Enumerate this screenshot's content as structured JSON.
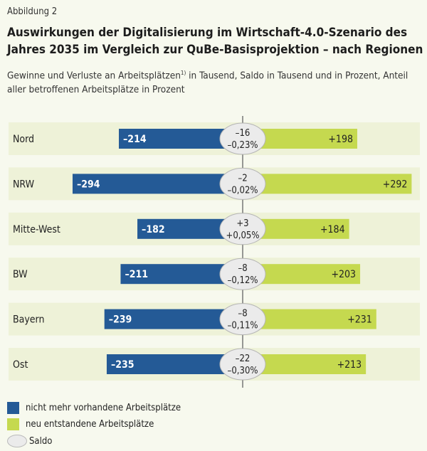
{
  "figure_label": "Abbildung 2",
  "chart_data": {
    "type": "bar",
    "title": "Auswirkungen der Digitalisierung im Wirtschaft-4.0-Szenario des Jahres 2035 im Vergleich zur QuBe-Basisprojektion – nach Regionen",
    "subtitle_pre": "Gewinne und Verluste an Arbeitsplätzen",
    "subtitle_footnote": "1)",
    "subtitle_post": " in Tausend, Saldo in Tausend und in Prozent, Anteil aller betroffenen Arbeitsplätze in Prozent",
    "categories": [
      "Nord",
      "NRW",
      "Mitte-West",
      "BW",
      "Bayern",
      "Ost"
    ],
    "series": [
      {
        "name": "nicht mehr vorhandene Arbeitsplätze",
        "color": "#245a96",
        "values": [
          -214,
          -294,
          -182,
          -211,
          -239,
          -235
        ],
        "labels": [
          "–214",
          "–294",
          "–182",
          "–211",
          "–239",
          "–235"
        ]
      },
      {
        "name": "neu entstandene Arbeitsplätze",
        "color": "#c5d94f",
        "values": [
          198,
          292,
          184,
          203,
          231,
          213
        ],
        "labels": [
          "+198",
          "+292",
          "+184",
          "+203",
          "+231",
          "+213"
        ]
      }
    ],
    "saldo": {
      "name": "Saldo",
      "values": [
        "–16",
        "–2",
        "+3",
        "–8",
        "–8",
        "–22"
      ],
      "percent": [
        "–0,23%",
        "–0,02%",
        "+0,05%",
        "–0,12%",
        "–0,11%",
        "–0,30%"
      ]
    },
    "xlim": [
      -300,
      300
    ],
    "grid": false,
    "legend_placement": "bottom-left"
  }
}
